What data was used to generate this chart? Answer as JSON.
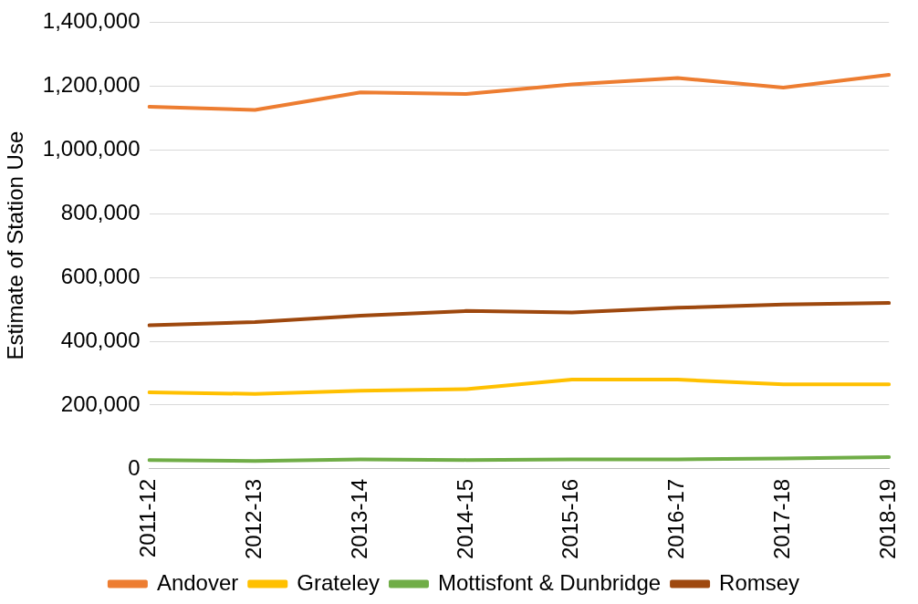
{
  "chart_data": {
    "type": "line",
    "ylabel": "Estimate of Station Use",
    "categories": [
      "2011-12",
      "2012-13",
      "2013-14",
      "2014-15",
      "2015-16",
      "2016-17",
      "2017-18",
      "2018-19"
    ],
    "series": [
      {
        "name": "Andover",
        "color": "#ed7d31",
        "values": [
          1135000,
          1125000,
          1180000,
          1175000,
          1205000,
          1225000,
          1195000,
          1235000
        ]
      },
      {
        "name": "Grateley",
        "color": "#ffc000",
        "values": [
          240000,
          235000,
          245000,
          250000,
          280000,
          280000,
          265000,
          265000
        ]
      },
      {
        "name": "Mottisfont & Dunbridge",
        "color": "#70ad47",
        "values": [
          28000,
          25000,
          30000,
          28000,
          30000,
          30000,
          33000,
          37000
        ]
      },
      {
        "name": "Romsey",
        "color": "#9e480e",
        "values": [
          450000,
          460000,
          480000,
          495000,
          490000,
          505000,
          515000,
          520000
        ]
      }
    ],
    "ylim": [
      0,
      1400000
    ],
    "yticks": [
      0,
      {
        "value": 200000,
        "label": "200,000"
      },
      {
        "value": 400000,
        "label": "400,000"
      },
      {
        "value": 600000,
        "label": "600,000"
      },
      {
        "value": 800000,
        "label": "800,000"
      },
      {
        "value": 1000000,
        "label": "1,000,000"
      },
      {
        "value": 1200000,
        "label": "1,200,000"
      },
      {
        "value": 1400000,
        "label": "1,400,000"
      }
    ],
    "grid": "y",
    "legend": "bottom",
    "marker": "none",
    "line_style": "solid"
  }
}
